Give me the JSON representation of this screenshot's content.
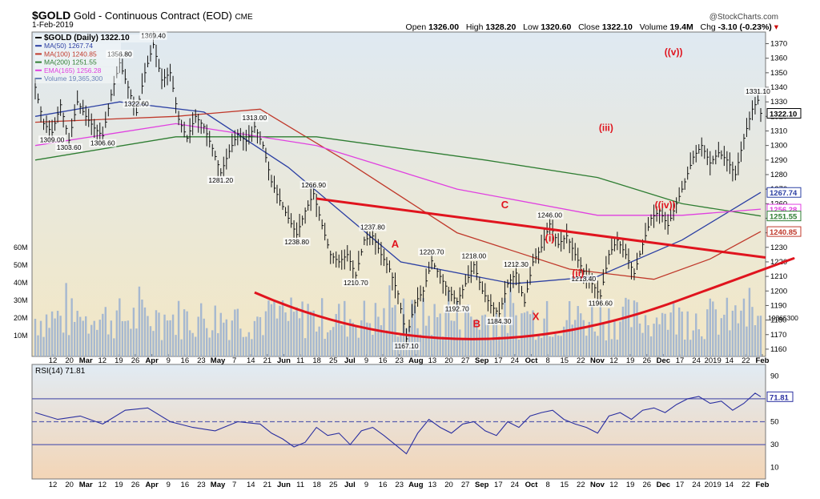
{
  "header": {
    "symbol": "$GOLD",
    "name": "Gold - Continuous Contract (EOD)",
    "exchange": "CME",
    "date": "1-Feb-2019",
    "source": "@StockCharts.com",
    "open_label": "Open",
    "open": "1326.00",
    "high_label": "High",
    "high": "1328.20",
    "low_label": "Low",
    "low": "1320.60",
    "close_label": "Close",
    "close": "1322.10",
    "volume_label": "Volume",
    "volume": "19.4M",
    "chg_label": "Chg",
    "chg": "-3.10 (-0.23%)"
  },
  "colors": {
    "price_bg_top": "#dfe9f2",
    "price_bg_bottom": "#f3e7c4",
    "rsi_bg_top": "#e1ebf4",
    "rsi_bg_bottom": "#f3d5b6",
    "ma50": "#2b3fa3",
    "ma100": "#c0392b",
    "ma200": "#2e7d32",
    "ema165": "#e040e0",
    "volume": "#9db2d0",
    "annotation": "#e0141e",
    "price": "#111111"
  },
  "chart_data": [
    {
      "type": "line",
      "title": "$GOLD (Daily) 1322.10",
      "legend": [
        {
          "name": "$GOLD (Daily) 1322.10",
          "color": "#111111"
        },
        {
          "name": "MA(50) 1267.74",
          "color": "#2b3fa3"
        },
        {
          "name": "MA(100) 1240.85",
          "color": "#c0392b"
        },
        {
          "name": "MA(200) 1251.55",
          "color": "#2e7d32"
        },
        {
          "name": "EMA(165) 1256.28",
          "color": "#e040e0"
        },
        {
          "name": "Volume 19,365,300",
          "color": "#6b83b8"
        }
      ],
      "legend_position": "top-left",
      "ylim": [
        1155,
        1378
      ],
      "y_ticks": [
        1160,
        1170,
        1180,
        1190,
        1200,
        1210,
        1220,
        1230,
        1240,
        1250,
        1260,
        1270,
        1280,
        1290,
        1300,
        1310,
        1320,
        1330,
        1340,
        1350,
        1360,
        1370
      ],
      "volume_ticks": [
        "60M",
        "50M",
        "40M",
        "30M",
        "20M",
        "10M"
      ],
      "volume_last_label": "19365300",
      "last_price_label": "1322.10",
      "ma_labels": [
        "1267.74",
        "1256.28",
        "1251.55",
        "1240.85"
      ],
      "x_ticks": [
        "12",
        "20",
        "Mar",
        "12",
        "19",
        "26",
        "Apr",
        "9",
        "16",
        "23",
        "May",
        "7",
        "14",
        "21",
        "Jun",
        "11",
        "18",
        "25",
        "Jul",
        "9",
        "16",
        "23",
        "Aug",
        "13",
        "20",
        "27",
        "Sep",
        "17",
        "24",
        "Oct",
        "8",
        "15",
        "22",
        "Nov",
        "12",
        "19",
        "26",
        "Dec",
        "17",
        "24",
        "2019",
        "14",
        "22",
        "Feb"
      ],
      "x_range": [
        "2018-02-05",
        "2019-02-01"
      ],
      "price_path": [
        [
          0,
          1340
        ],
        [
          3,
          1315
        ],
        [
          6,
          1309
        ],
        [
          9,
          1328
        ],
        [
          12,
          1303.6
        ],
        [
          15,
          1330
        ],
        [
          18,
          1320
        ],
        [
          21,
          1312
        ],
        [
          24,
          1306.6
        ],
        [
          27,
          1335
        ],
        [
          30,
          1356.8
        ],
        [
          33,
          1340
        ],
        [
          36,
          1322.6
        ],
        [
          39,
          1350
        ],
        [
          42,
          1369.4
        ],
        [
          45,
          1345
        ],
        [
          48,
          1350
        ],
        [
          51,
          1318
        ],
        [
          54,
          1305
        ],
        [
          57,
          1320
        ],
        [
          60,
          1313
        ],
        [
          63,
          1298
        ],
        [
          66,
          1281.2
        ],
        [
          69,
          1296
        ],
        [
          72,
          1308
        ],
        [
          75,
          1303
        ],
        [
          78,
          1313
        ],
        [
          81,
          1300
        ],
        [
          84,
          1275
        ],
        [
          87,
          1262
        ],
        [
          90,
          1250
        ],
        [
          93,
          1238.8
        ],
        [
          96,
          1255
        ],
        [
          99,
          1266.9
        ],
        [
          102,
          1245
        ],
        [
          105,
          1225
        ],
        [
          108,
          1220
        ],
        [
          111,
          1225
        ],
        [
          114,
          1210.7
        ],
        [
          117,
          1235
        ],
        [
          120,
          1237.8
        ],
        [
          123,
          1225
        ],
        [
          126,
          1215
        ],
        [
          129,
          1198
        ],
        [
          132,
          1167.1
        ],
        [
          135,
          1192
        ],
        [
          138,
          1200
        ],
        [
          141,
          1220.7
        ],
        [
          144,
          1210
        ],
        [
          147,
          1200
        ],
        [
          150,
          1192.7
        ],
        [
          153,
          1205
        ],
        [
          156,
          1218
        ],
        [
          159,
          1200
        ],
        [
          162,
          1190
        ],
        [
          165,
          1184.3
        ],
        [
          168,
          1205
        ],
        [
          171,
          1212.3
        ],
        [
          174,
          1192
        ],
        [
          177,
          1220
        ],
        [
          180,
          1230
        ],
        [
          183,
          1246
        ],
        [
          186,
          1232
        ],
        [
          189,
          1238
        ],
        [
          192,
          1225
        ],
        [
          195,
          1213.4
        ],
        [
          198,
          1205
        ],
        [
          201,
          1196.6
        ],
        [
          204,
          1225
        ],
        [
          207,
          1235
        ],
        [
          210,
          1225
        ],
        [
          213,
          1212
        ],
        [
          216,
          1232
        ],
        [
          219,
          1250
        ],
        [
          222,
          1255
        ],
        [
          225,
          1245
        ],
        [
          228,
          1260
        ],
        [
          231,
          1275
        ],
        [
          234,
          1292
        ],
        [
          237,
          1300
        ],
        [
          240,
          1288
        ],
        [
          243,
          1295
        ],
        [
          246,
          1290
        ],
        [
          249,
          1280
        ],
        [
          252,
          1305
        ],
        [
          255,
          1325
        ],
        [
          257,
          1331.1
        ],
        [
          258,
          1322.1
        ]
      ],
      "series": [
        {
          "name": "MA(50)",
          "values": [
            [
              0,
              1320
            ],
            [
              30,
              1330
            ],
            [
              60,
              1323
            ],
            [
              90,
              1285
            ],
            [
              130,
              1220
            ],
            [
              170,
              1205
            ],
            [
              200,
              1210
            ],
            [
              230,
              1235
            ],
            [
              258,
              1267.74
            ]
          ]
        },
        {
          "name": "MA(100)",
          "values": [
            [
              0,
              1316
            ],
            [
              50,
              1320
            ],
            [
              80,
              1325
            ],
            [
              110,
              1290
            ],
            [
              150,
              1240
            ],
            [
              190,
              1215
            ],
            [
              220,
              1208
            ],
            [
              240,
              1222
            ],
            [
              258,
              1240.85
            ]
          ]
        },
        {
          "name": "MA(200)",
          "values": [
            [
              0,
              1290
            ],
            [
              50,
              1306
            ],
            [
              100,
              1306
            ],
            [
              160,
              1290
            ],
            [
              200,
              1278
            ],
            [
              230,
              1260
            ],
            [
              258,
              1251.55
            ]
          ]
        },
        {
          "name": "EMA(165)",
          "values": [
            [
              0,
              1300
            ],
            [
              50,
              1315
            ],
            [
              100,
              1300
            ],
            [
              150,
              1270
            ],
            [
              200,
              1252
            ],
            [
              230,
              1252
            ],
            [
              258,
              1256.28
            ]
          ]
        }
      ],
      "price_labels": [
        {
          "text": "1309.00",
          "x": 6,
          "y": 1309
        },
        {
          "text": "1303.60",
          "x": 12,
          "y": 1303.6
        },
        {
          "text": "1306.60",
          "x": 24,
          "y": 1306.6
        },
        {
          "text": "1356.80",
          "x": 30,
          "y": 1356.8
        },
        {
          "text": "1322.60",
          "x": 36,
          "y": 1322.6
        },
        {
          "text": "1369.40",
          "x": 42,
          "y": 1369.4
        },
        {
          "text": "1281.20",
          "x": 66,
          "y": 1281.2
        },
        {
          "text": "1313.00",
          "x": 78,
          "y": 1313
        },
        {
          "text": "1266.90",
          "x": 99,
          "y": 1266.9
        },
        {
          "text": "1238.80",
          "x": 93,
          "y": 1238.8
        },
        {
          "text": "1237.80",
          "x": 120,
          "y": 1237.8
        },
        {
          "text": "1210.70",
          "x": 114,
          "y": 1210.7
        },
        {
          "text": "1220.70",
          "x": 141,
          "y": 1220.7
        },
        {
          "text": "1218.00",
          "x": 156,
          "y": 1218
        },
        {
          "text": "1192.70",
          "x": 150,
          "y": 1192.7
        },
        {
          "text": "1167.10",
          "x": 132,
          "y": 1167.1
        },
        {
          "text": "1212.30",
          "x": 171,
          "y": 1212.3
        },
        {
          "text": "1184.30",
          "x": 165,
          "y": 1184.3
        },
        {
          "text": "1246.00",
          "x": 183,
          "y": 1246
        },
        {
          "text": "1213.40",
          "x": 195,
          "y": 1213.4
        },
        {
          "text": "1196.60",
          "x": 201,
          "y": 1196.6
        },
        {
          "text": "1331.10",
          "x": 257,
          "y": 1331.1
        }
      ],
      "annotations": [
        "A",
        "B",
        "C",
        "X",
        "(i)",
        "(ii)",
        "(iii)",
        "((iv))",
        "((v))"
      ]
    },
    {
      "type": "line",
      "title": "RSI(14) 71.81",
      "ylim": [
        0,
        100
      ],
      "y_ticks": [
        10,
        30,
        50,
        70,
        90
      ],
      "last_value_label": "71.81",
      "reference_lines": [
        70,
        50,
        30
      ],
      "x_ticks": [
        "12",
        "20",
        "Mar",
        "12",
        "19",
        "26",
        "Apr",
        "9",
        "16",
        "23",
        "May",
        "7",
        "14",
        "21",
        "Jun",
        "11",
        "18",
        "25",
        "Jul",
        "9",
        "16",
        "23",
        "Aug",
        "13",
        "20",
        "27",
        "Sep",
        "17",
        "24",
        "Oct",
        "8",
        "15",
        "22",
        "Nov",
        "12",
        "19",
        "26",
        "Dec",
        "17",
        "24",
        "2019",
        "14",
        "22",
        "Feb"
      ],
      "values": [
        [
          0,
          58
        ],
        [
          8,
          52
        ],
        [
          16,
          55
        ],
        [
          24,
          48
        ],
        [
          32,
          60
        ],
        [
          40,
          62
        ],
        [
          48,
          50
        ],
        [
          56,
          45
        ],
        [
          64,
          42
        ],
        [
          72,
          50
        ],
        [
          80,
          48
        ],
        [
          84,
          40
        ],
        [
          88,
          35
        ],
        [
          92,
          28
        ],
        [
          96,
          32
        ],
        [
          100,
          45
        ],
        [
          104,
          38
        ],
        [
          108,
          40
        ],
        [
          112,
          30
        ],
        [
          116,
          42
        ],
        [
          120,
          45
        ],
        [
          124,
          38
        ],
        [
          128,
          30
        ],
        [
          132,
          22
        ],
        [
          136,
          40
        ],
        [
          140,
          52
        ],
        [
          144,
          45
        ],
        [
          148,
          40
        ],
        [
          152,
          48
        ],
        [
          156,
          50
        ],
        [
          160,
          42
        ],
        [
          164,
          38
        ],
        [
          168,
          50
        ],
        [
          172,
          45
        ],
        [
          176,
          55
        ],
        [
          180,
          58
        ],
        [
          184,
          60
        ],
        [
          188,
          52
        ],
        [
          192,
          48
        ],
        [
          196,
          45
        ],
        [
          200,
          40
        ],
        [
          204,
          55
        ],
        [
          208,
          58
        ],
        [
          212,
          52
        ],
        [
          216,
          60
        ],
        [
          220,
          62
        ],
        [
          224,
          58
        ],
        [
          228,
          65
        ],
        [
          232,
          70
        ],
        [
          236,
          72
        ],
        [
          240,
          66
        ],
        [
          244,
          68
        ],
        [
          248,
          60
        ],
        [
          252,
          66
        ],
        [
          256,
          75
        ],
        [
          258,
          71.81
        ]
      ]
    }
  ]
}
